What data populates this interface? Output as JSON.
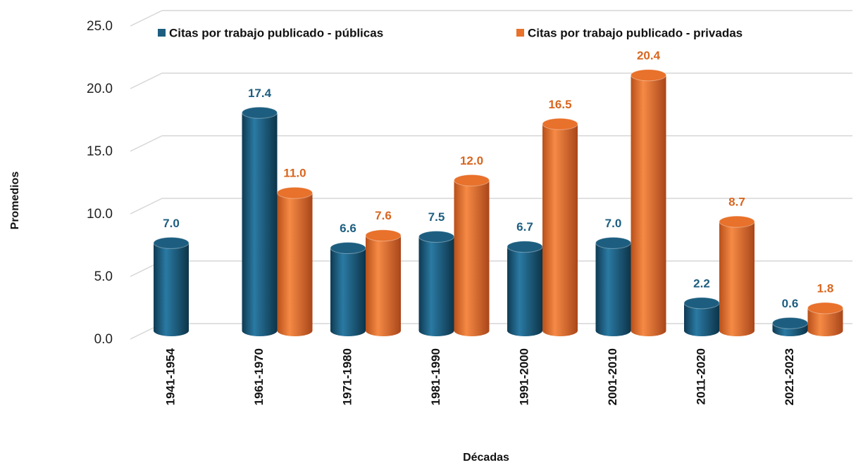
{
  "chart_data": {
    "type": "bar",
    "x_label": "Décadas",
    "y_label": "Promedios",
    "categories": [
      "1941-1954",
      "1961-1970",
      "1971-1980",
      "1981-1990",
      "1991-2000",
      "2001-2010",
      "2011-2020",
      "2021-2023"
    ],
    "series": [
      {
        "name": "Citas por trabajo publicado - públicas",
        "color": "#1d5e80",
        "values": [
          7.0,
          17.4,
          6.6,
          7.5,
          6.7,
          7.0,
          2.2,
          0.6
        ],
        "value_labels": [
          "7.0",
          "17.4",
          "6.6",
          "7.5",
          "6.7",
          "7.0",
          "2.2",
          "0.6"
        ]
      },
      {
        "name": "Citas por trabajo publicado - privadas",
        "color": "#e8712b",
        "values": [
          null,
          11.0,
          7.6,
          12.0,
          16.5,
          20.4,
          8.7,
          1.8
        ],
        "value_labels": [
          null,
          "11.0",
          "7.6",
          "12.0",
          "16.5",
          "20.4",
          "8.7",
          "1.8"
        ]
      }
    ],
    "ylim": [
      0,
      25
    ],
    "yticks": [
      {
        "value": 0,
        "label": "0.0"
      },
      {
        "value": 5,
        "label": "5.0"
      },
      {
        "value": 10,
        "label": "10.0"
      },
      {
        "value": 15,
        "label": "15.0"
      },
      {
        "value": 20,
        "label": "20.0"
      },
      {
        "value": 25,
        "label": "25.0"
      }
    ],
    "grid": true,
    "legend": "top"
  }
}
